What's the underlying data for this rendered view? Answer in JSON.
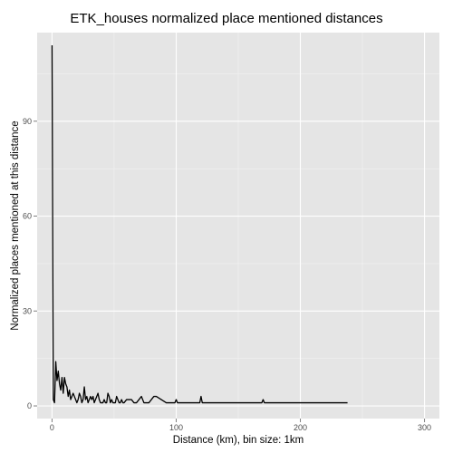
{
  "chart_data": {
    "type": "line",
    "title": "ETK_houses normalized place mentioned distances",
    "xlabel": "Distance (km), bin size: 1km",
    "ylabel": "Normalized places mentioned at this distance",
    "xlim": [
      -12,
      312
    ],
    "ylim": [
      -4,
      118
    ],
    "x_ticks": [
      0,
      100,
      200,
      300
    ],
    "x_tick_labels": [
      "0",
      "100",
      "200",
      "300"
    ],
    "y_ticks": [
      0,
      30,
      60,
      90
    ],
    "y_tick_labels": [
      "0",
      "30",
      "60",
      "90"
    ],
    "grid": true,
    "legend": "none",
    "background_color": "#e5e5e5",
    "grid_major_color": "#ffffff",
    "line_color": "#000000",
    "series": [
      {
        "x": [
          0,
          1,
          2,
          3,
          4,
          5,
          6,
          7,
          8,
          9,
          10,
          11,
          12,
          13,
          14,
          15,
          16,
          17,
          18,
          19,
          20,
          21,
          22,
          23,
          24,
          25,
          26,
          27,
          28,
          29,
          30,
          31,
          32,
          33,
          34,
          35,
          36,
          37,
          38,
          39,
          40,
          41,
          42,
          43,
          44,
          45,
          46,
          47,
          48,
          49,
          50,
          51,
          52,
          53,
          54,
          55,
          56,
          57,
          58,
          60,
          62,
          64,
          66,
          68,
          70,
          72,
          74,
          76,
          78,
          80,
          82,
          84,
          86,
          88,
          90,
          92,
          94,
          96,
          98,
          99,
          100,
          101,
          102,
          105,
          110,
          115,
          118,
          119,
          120,
          121,
          122,
          125,
          130,
          140,
          150,
          160,
          165,
          168,
          169,
          170,
          171,
          172,
          175,
          180,
          190,
          200,
          210,
          220,
          230,
          238
        ],
        "y": [
          114,
          2,
          1,
          14,
          8,
          11,
          7,
          5,
          9,
          4,
          9,
          7,
          6,
          3,
          5,
          2,
          3,
          4,
          3,
          2,
          1,
          2,
          4,
          3,
          1,
          2,
          6,
          2,
          3,
          1,
          2,
          3,
          2,
          3,
          1,
          2,
          3,
          4,
          2,
          1,
          1,
          1,
          2,
          1,
          1,
          4,
          3,
          1,
          2,
          1,
          1,
          1,
          3,
          2,
          1,
          1,
          2,
          1,
          1,
          2,
          2,
          2,
          1,
          1,
          2,
          3,
          1,
          1,
          1,
          2,
          3,
          3,
          2.5,
          2,
          1.5,
          1,
          1,
          1,
          1,
          1,
          2,
          1,
          1,
          1,
          1,
          1,
          1,
          1,
          3,
          1,
          1,
          1,
          1,
          1,
          1,
          1,
          1,
          1,
          1,
          2,
          1,
          1,
          1,
          1,
          1,
          1,
          1,
          1,
          1,
          1
        ]
      }
    ]
  }
}
